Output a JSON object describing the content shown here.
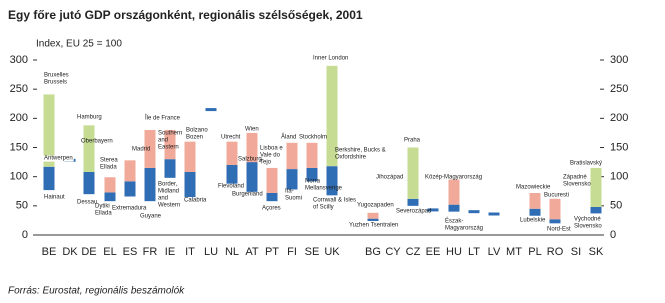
{
  "chart_data": {
    "type": "range-bar",
    "title": "Egy főre jutó GDP országonként, regionális szélsőségek, 2001",
    "subtitle": "Index, EU 25 = 100",
    "source": "Forrás: Eurostat, regionális beszámolók",
    "categories": [
      "BE",
      "DK",
      "DE",
      "EL",
      "ES",
      "FR",
      "IE",
      "IT",
      "LU",
      "NL",
      "AT",
      "PT",
      "FI",
      "SE",
      "UK",
      "BG",
      "CY",
      "CZ",
      "EE",
      "HU",
      "LT",
      "LV",
      "MT",
      "PL",
      "RO",
      "SI",
      "SK"
    ],
    "min": [
      77,
      null,
      70,
      58,
      66,
      58,
      98,
      65,
      null,
      88,
      74,
      58,
      78,
      92,
      68,
      24,
      null,
      50,
      null,
      40,
      null,
      null,
      null,
      33,
      20,
      null,
      37
    ],
    "national": [
      117,
      128,
      108,
      73,
      92,
      115,
      130,
      108,
      215,
      120,
      125,
      72,
      113,
      115,
      118,
      28,
      null,
      62,
      43,
      52,
      40,
      36,
      null,
      45,
      27,
      null,
      48
    ],
    "max": [
      241,
      null,
      188,
      99,
      128,
      180,
      180,
      160,
      null,
      160,
      175,
      115,
      158,
      158,
      290,
      38,
      null,
      150,
      null,
      95,
      null,
      null,
      null,
      72,
      62,
      null,
      115
    ],
    "low_color": "#2f6eb5",
    "max_colors": [
      "#c6dc93",
      null,
      "#c6dc93",
      "#f1a999",
      "#f1a999",
      "#f1a999",
      "#f1a999",
      "#f1a999",
      null,
      "#f1a999",
      "#f1a999",
      "#f1a999",
      "#f1a999",
      "#f1a999",
      "#c6dc93",
      "#f1a999",
      null,
      "#c6dc93",
      null,
      "#f1a999",
      null,
      null,
      null,
      "#f1a999",
      "#f1a999",
      null,
      "#c6dc93"
    ],
    "ylim": [
      0,
      300
    ],
    "yticks": [
      0,
      50,
      100,
      150,
      200,
      250,
      300
    ],
    "annotations": [
      [
        "Bruxelles",
        "Brussels"
      ],
      [
        "Antwerpen"
      ],
      [
        "Hainaut"
      ],
      [
        "Hamburg"
      ],
      [
        "Oberbayern"
      ],
      [
        "Dessau"
      ],
      [
        "Sterea",
        "Ellada"
      ],
      [
        "Dytiki",
        "Ellada"
      ],
      [
        "Madrid"
      ],
      [
        "Extremadura"
      ],
      [
        "Île de France"
      ],
      [
        "Guyane"
      ],
      [
        "Southern",
        "and",
        "Eastern"
      ],
      [
        "Border,",
        "Midland",
        "and",
        "Western"
      ],
      [
        "Bolzano",
        "Bozen"
      ],
      [
        "Calabria"
      ],
      [
        "Utrecht"
      ],
      [
        "Flevoland"
      ],
      [
        "Wien"
      ],
      [
        "Salzburg"
      ],
      [
        "Burgenland"
      ],
      [
        "Lisboa e",
        "Vale do",
        "Tejo"
      ],
      [
        "Açores"
      ],
      [
        "Åland"
      ],
      [
        "Itä-",
        "Suomi"
      ],
      [
        "Stockholm"
      ],
      [
        "Norra",
        "Mellansverige"
      ],
      [
        "Inner London"
      ],
      [
        "Berkshire, Bucks &",
        "Oxfordshire"
      ],
      [
        "Cornwall & Isles",
        "of Scilly"
      ],
      [
        "Yugozapaden"
      ],
      [
        "Yuzhen Tsentralen"
      ],
      [
        "Praha"
      ],
      [
        "Jihozápad"
      ],
      [
        "Severozápad"
      ],
      [
        "Közép-Magyarország"
      ],
      [
        "Észak-",
        "Magyarország"
      ],
      [
        "Mazowieckie"
      ],
      [
        "Lubelskie"
      ],
      [
        "Bucuresti"
      ],
      [
        "Nord-Est"
      ],
      [
        "Bratislavský"
      ],
      [
        "Západné",
        "Slovensko"
      ],
      [
        "Východné",
        "Slovensko"
      ]
    ]
  }
}
